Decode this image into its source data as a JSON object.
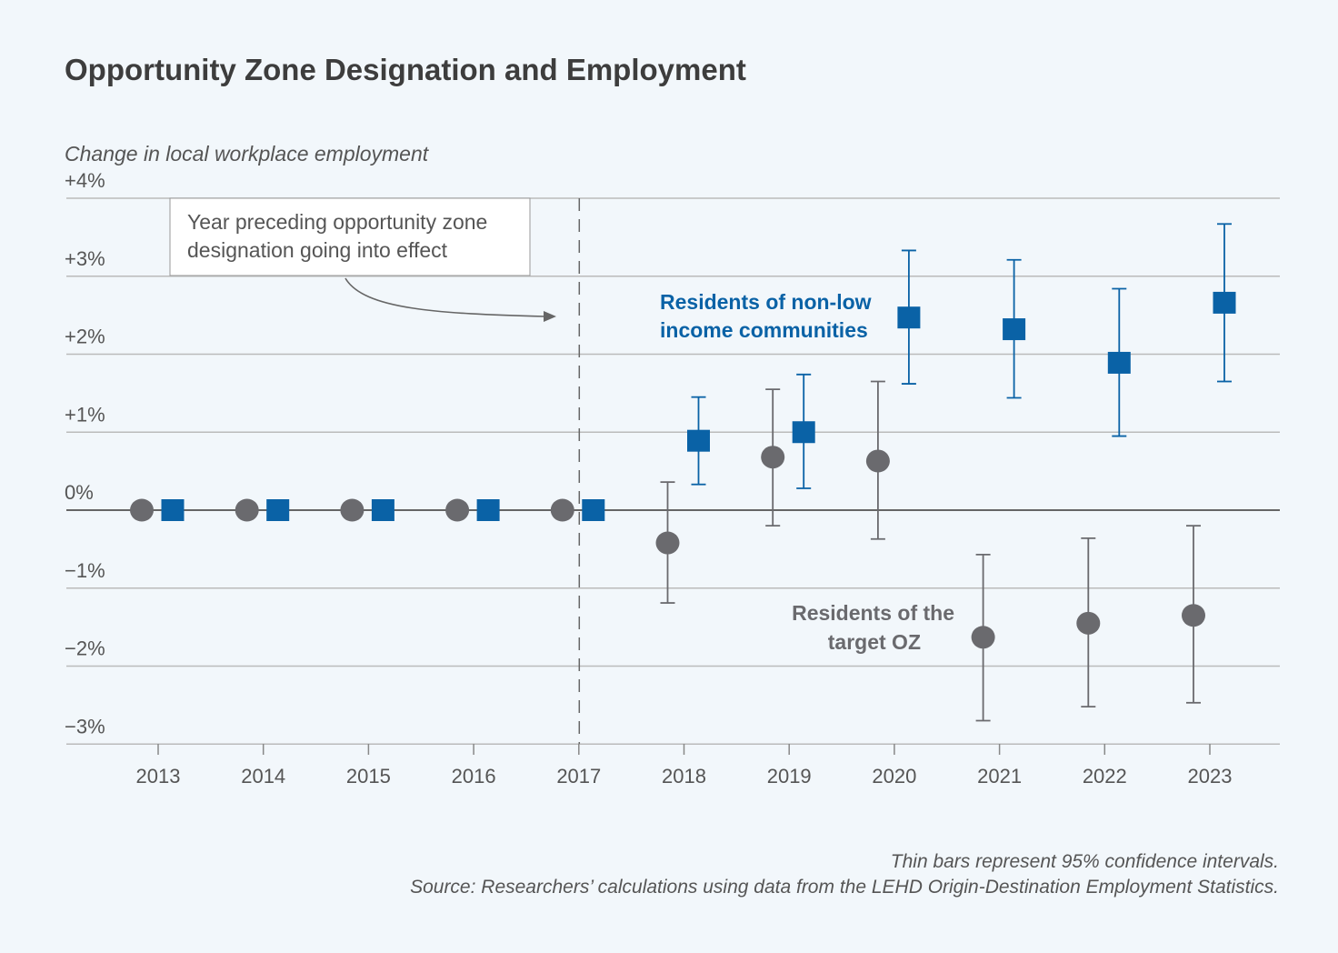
{
  "chart_data": {
    "type": "scatter",
    "title": "Opportunity Zone Designation and Employment",
    "ylabel": "Change in local workplace employment",
    "ylim": [
      -3,
      4
    ],
    "yticks": [
      4,
      3,
      2,
      1,
      0,
      -1,
      -2,
      -3
    ],
    "ytick_labels": [
      "+4%",
      "+3%",
      "+2%",
      "+1%",
      "0%",
      "−1%",
      "−2%",
      "−3%"
    ],
    "categories": [
      "2013",
      "2014",
      "2015",
      "2016",
      "2017",
      "2018",
      "2019",
      "2020",
      "2021",
      "2022",
      "2023"
    ],
    "grid": true,
    "reference_line": {
      "year": "2017",
      "style": "dashed",
      "annotation": [
        "Year preceding opportunity zone",
        "designation going into effect"
      ]
    },
    "series": [
      {
        "name": "Residents of the target OZ",
        "label_lines": [
          "Residents of the",
          "target OZ"
        ],
        "marker": "circle",
        "color": "#6a6a6e",
        "values": [
          0,
          0,
          0,
          0,
          0,
          -0.42,
          0.68,
          0.63,
          -1.63,
          -1.45,
          -1.35
        ],
        "ci_low": [
          null,
          null,
          null,
          null,
          null,
          -1.19,
          -0.2,
          -0.37,
          -2.7,
          -2.52,
          -2.47
        ],
        "ci_high": [
          null,
          null,
          null,
          null,
          null,
          0.36,
          1.55,
          1.65,
          -0.57,
          -0.36,
          -0.2
        ]
      },
      {
        "name": "Residents of non-low income communities",
        "label_lines": [
          "Residents of non-low",
          "income communities"
        ],
        "marker": "square",
        "color": "#0a62a6",
        "values": [
          0,
          0,
          0,
          0,
          0,
          0.89,
          1.0,
          2.47,
          2.32,
          1.89,
          2.66
        ],
        "ci_low": [
          null,
          null,
          null,
          null,
          null,
          0.33,
          0.28,
          1.62,
          1.44,
          0.95,
          1.65
        ],
        "ci_high": [
          null,
          null,
          null,
          null,
          null,
          1.45,
          1.74,
          3.33,
          3.21,
          2.84,
          3.67
        ]
      }
    ],
    "notes": [
      "Thin bars represent 95% confidence intervals.",
      "Source: Researchers’ calculations using data from the LEHD Origin-Destination Employment Statistics."
    ]
  }
}
